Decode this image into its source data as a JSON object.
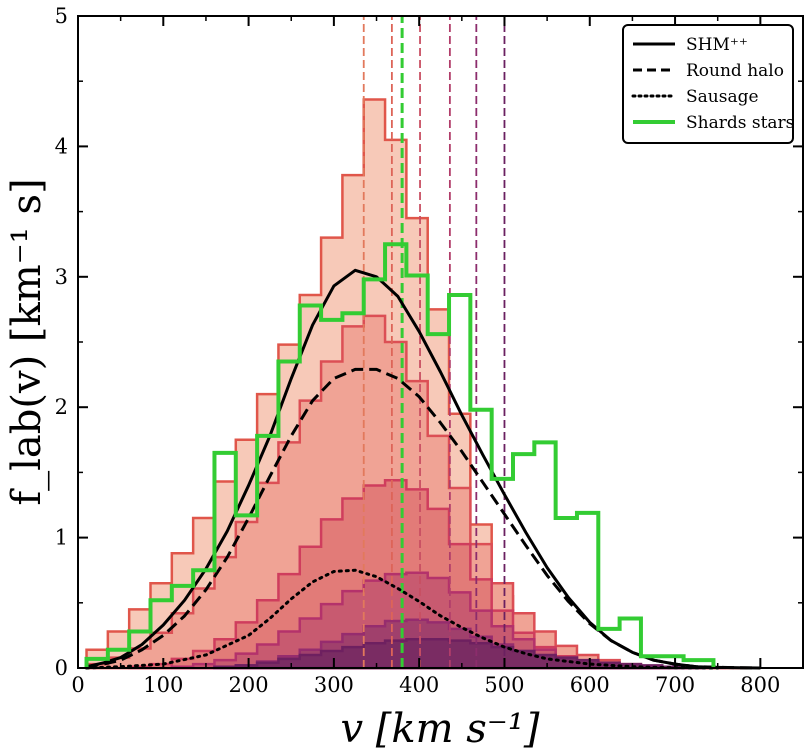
{
  "chart_data": {
    "type": "line",
    "xlabel": "v [km s⁻¹]",
    "ylabel": "f_lab(v) [km⁻¹ s]",
    "xlim": [
      0,
      850
    ],
    "ylim": [
      0,
      5
    ],
    "x_ticks": [
      "0",
      "100",
      "200",
      "300",
      "400",
      "500",
      "600",
      "700",
      "800"
    ],
    "y_ticks": [
      "0",
      "1",
      "2",
      "3",
      "4",
      "5"
    ],
    "legend_position": "top-right",
    "legend": [
      {
        "label": "SHM⁺⁺",
        "style": "solid",
        "color": "#000000"
      },
      {
        "label": "Round halo",
        "style": "dashed",
        "color": "#000000"
      },
      {
        "label": "Sausage",
        "style": "dotted",
        "color": "#000000"
      },
      {
        "label": "Shards stars",
        "style": "solid",
        "color": "#33cc33"
      }
    ],
    "curves": [
      {
        "key": "shm",
        "style": "solid",
        "color": "#000000",
        "x": [
          10,
          30,
          50,
          75,
          100,
          125,
          150,
          175,
          200,
          225,
          250,
          275,
          300,
          325,
          350,
          375,
          400,
          425,
          450,
          475,
          500,
          525,
          550,
          575,
          600,
          625,
          650,
          675,
          700,
          725,
          750,
          775,
          800
        ],
        "y": [
          0.01,
          0.04,
          0.08,
          0.18,
          0.33,
          0.52,
          0.76,
          1.05,
          1.4,
          1.78,
          2.22,
          2.63,
          2.93,
          3.05,
          3.0,
          2.85,
          2.58,
          2.27,
          1.94,
          1.63,
          1.33,
          1.04,
          0.77,
          0.54,
          0.35,
          0.21,
          0.12,
          0.06,
          0.03,
          0.01,
          0.005,
          0.002,
          0
        ]
      },
      {
        "key": "round",
        "style": "dashed",
        "color": "#000000",
        "x": [
          10,
          30,
          50,
          75,
          100,
          125,
          150,
          175,
          200,
          225,
          250,
          275,
          300,
          325,
          350,
          375,
          400,
          425,
          450,
          475,
          500,
          525,
          550,
          575,
          600,
          625,
          650,
          675,
          700,
          725,
          750,
          775,
          800
        ],
        "y": [
          0.01,
          0.03,
          0.06,
          0.14,
          0.25,
          0.4,
          0.6,
          0.85,
          1.15,
          1.47,
          1.78,
          2.05,
          2.22,
          2.29,
          2.29,
          2.22,
          2.08,
          1.88,
          1.66,
          1.42,
          1.18,
          0.94,
          0.71,
          0.51,
          0.34,
          0.21,
          0.12,
          0.06,
          0.03,
          0.01,
          0.005,
          0.002,
          0
        ]
      },
      {
        "key": "sausage",
        "style": "dotted",
        "color": "#000000",
        "x": [
          10,
          50,
          100,
          150,
          200,
          225,
          250,
          275,
          300,
          325,
          350,
          375,
          400,
          425,
          450,
          475,
          500,
          525,
          550,
          575,
          600,
          625,
          650,
          675,
          700,
          725,
          750
        ],
        "y": [
          0,
          0.01,
          0.03,
          0.1,
          0.25,
          0.38,
          0.53,
          0.66,
          0.74,
          0.75,
          0.7,
          0.61,
          0.51,
          0.4,
          0.31,
          0.23,
          0.16,
          0.11,
          0.07,
          0.05,
          0.03,
          0.02,
          0.01,
          0.005,
          0.002,
          0.001,
          0
        ]
      }
    ],
    "histogram_fill_colors": [
      "#f7c9b8",
      "#f0a395",
      "#e27b78",
      "#c85a70",
      "#a0406c",
      "#7a2c63"
    ],
    "histogram_edge_colors": [
      "#e0564a",
      "#dc4f55",
      "#cf3d5d",
      "#b4326b",
      "#962c6e",
      "#6e2060"
    ],
    "stream_histograms": [
      {
        "bin_width": 25,
        "edges_start": 10,
        "values": [
          0.14,
          0.28,
          0.45,
          0.65,
          0.88,
          1.15,
          1.43,
          1.75,
          2.1,
          2.48,
          2.86,
          3.3,
          3.78,
          4.36,
          4.05,
          3.45,
          2.75,
          1.95,
          1.1,
          0.55,
          0.28,
          0.15,
          0.08,
          0.04,
          0.02,
          0.01,
          0,
          0,
          0,
          0,
          0
        ]
      },
      {
        "bin_width": 25,
        "edges_start": 10,
        "values": [
          0.03,
          0.08,
          0.15,
          0.27,
          0.42,
          0.61,
          0.85,
          1.12,
          1.42,
          1.73,
          2.05,
          2.35,
          2.62,
          2.7,
          2.5,
          2.2,
          1.78,
          1.38,
          0.95,
          0.65,
          0.42,
          0.28,
          0.17,
          0.1,
          0.06,
          0.03,
          0.01,
          0,
          0,
          0,
          0
        ]
      },
      {
        "bin_width": 25,
        "edges_start": 60,
        "values": [
          0.01,
          0.03,
          0.07,
          0.13,
          0.22,
          0.35,
          0.52,
          0.72,
          0.93,
          1.14,
          1.3,
          1.4,
          1.44,
          1.37,
          1.22,
          0.95,
          0.68,
          0.44,
          0.27,
          0.16,
          0.09,
          0.05,
          0.02,
          0.01,
          0,
          0,
          0,
          0
        ]
      },
      {
        "bin_width": 25,
        "edges_start": 110,
        "values": [
          0.01,
          0.03,
          0.06,
          0.11,
          0.18,
          0.28,
          0.38,
          0.49,
          0.59,
          0.67,
          0.72,
          0.73,
          0.69,
          0.58,
          0.44,
          0.32,
          0.22,
          0.14,
          0.08,
          0.05,
          0.03,
          0.01,
          0,
          0,
          0
        ]
      },
      {
        "bin_width": 25,
        "edges_start": 160,
        "values": [
          0.01,
          0.02,
          0.05,
          0.09,
          0.14,
          0.2,
          0.26,
          0.32,
          0.36,
          0.37,
          0.35,
          0.3,
          0.24,
          0.18,
          0.13,
          0.09,
          0.06,
          0.04,
          0.02,
          0.01,
          0,
          0
        ]
      },
      {
        "bin_width": 25,
        "edges_start": 160,
        "values": [
          0.01,
          0.02,
          0.04,
          0.07,
          0.1,
          0.13,
          0.16,
          0.19,
          0.21,
          0.22,
          0.22,
          0.21,
          0.19,
          0.16,
          0.13,
          0.1,
          0.08,
          0.06,
          0.04,
          0.03,
          0.02,
          0.01,
          0
        ]
      }
    ],
    "shards_histogram": {
      "color": "#33cc33",
      "x": [
        10,
        35,
        60,
        85,
        110,
        135,
        160,
        185,
        210,
        235,
        260,
        285,
        310,
        335,
        360,
        385,
        410,
        435,
        460,
        485,
        510,
        535,
        560,
        585,
        610,
        635,
        660,
        685,
        710,
        735
      ],
      "values": [
        0.07,
        0.14,
        0.28,
        0.52,
        0.63,
        0.75,
        1.65,
        1.17,
        1.78,
        2.35,
        2.78,
        2.67,
        2.72,
        2.98,
        3.25,
        3.01,
        2.56,
        2.86,
        1.98,
        1.45,
        1.64,
        1.73,
        1.15,
        1.19,
        0.3,
        0.38,
        0.09,
        0.09,
        0.06,
        0.06
      ],
      "end": 745
    },
    "vertical_markers": [
      {
        "x": 335,
        "color": "#e2795c"
      },
      {
        "x": 368,
        "color": "#dd6458"
      },
      {
        "x": 380,
        "color": "#33cc33"
      },
      {
        "x": 401,
        "color": "#c94f62"
      },
      {
        "x": 436,
        "color": "#b13d6a"
      },
      {
        "x": 467,
        "color": "#8c2c6c"
      },
      {
        "x": 500,
        "color": "#6a2060"
      }
    ]
  }
}
